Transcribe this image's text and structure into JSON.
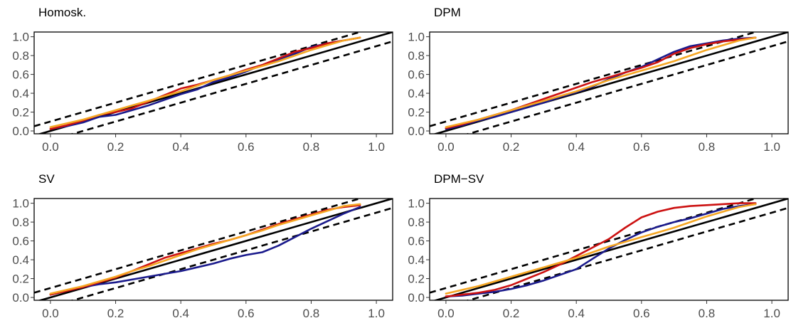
{
  "chart_data": [
    {
      "type": "line",
      "title": "Homosk.",
      "xlim": [
        -0.05,
        1.05
      ],
      "ylim": [
        -0.03,
        1.05
      ],
      "xticks": [
        "0.0",
        "0.2",
        "0.4",
        "0.6",
        "0.8",
        "1.0"
      ],
      "yticks": [
        "0.0",
        "0.2",
        "0.4",
        "0.6",
        "0.8",
        "1.0"
      ],
      "reference": {
        "diagonal": [
          [
            -0.05,
            -0.05
          ],
          [
            1.05,
            1.05
          ]
        ],
        "upper_band": [
          [
            -0.05,
            0.05
          ],
          [
            0.95,
            1.05
          ]
        ],
        "lower_band": [
          [
            0.05,
            -0.05
          ],
          [
            1.05,
            0.95
          ]
        ]
      },
      "series": [
        {
          "color": "#1a1a8c",
          "x": [
            0.0,
            0.05,
            0.1,
            0.15,
            0.2,
            0.25,
            0.3,
            0.35,
            0.4,
            0.45,
            0.5,
            0.55,
            0.6,
            0.65,
            0.7,
            0.75,
            0.8,
            0.85,
            0.9,
            0.95
          ],
          "y": [
            0.02,
            0.05,
            0.09,
            0.15,
            0.17,
            0.22,
            0.27,
            0.33,
            0.39,
            0.44,
            0.52,
            0.57,
            0.63,
            0.7,
            0.76,
            0.82,
            0.89,
            0.93,
            0.96,
            0.99
          ]
        },
        {
          "color": "#cc1111",
          "x": [
            0.0,
            0.05,
            0.1,
            0.15,
            0.2,
            0.25,
            0.3,
            0.35,
            0.4,
            0.45,
            0.5,
            0.55,
            0.6,
            0.65,
            0.7,
            0.75,
            0.8,
            0.85,
            0.9,
            0.95
          ],
          "y": [
            0.02,
            0.06,
            0.11,
            0.17,
            0.2,
            0.24,
            0.31,
            0.38,
            0.45,
            0.49,
            0.54,
            0.59,
            0.65,
            0.7,
            0.77,
            0.84,
            0.88,
            0.93,
            0.96,
            0.99
          ]
        },
        {
          "color": "#f5a623",
          "x": [
            0.0,
            0.05,
            0.1,
            0.15,
            0.2,
            0.25,
            0.3,
            0.35,
            0.4,
            0.45,
            0.5,
            0.55,
            0.6,
            0.65,
            0.7,
            0.75,
            0.8,
            0.85,
            0.9,
            0.95
          ],
          "y": [
            0.04,
            0.08,
            0.12,
            0.17,
            0.22,
            0.27,
            0.32,
            0.37,
            0.42,
            0.48,
            0.54,
            0.59,
            0.64,
            0.69,
            0.74,
            0.8,
            0.86,
            0.91,
            0.96,
            0.99
          ]
        }
      ]
    },
    {
      "type": "line",
      "title": "DPM",
      "xlim": [
        -0.05,
        1.05
      ],
      "ylim": [
        -0.03,
        1.05
      ],
      "xticks": [
        "0.0",
        "0.2",
        "0.4",
        "0.6",
        "0.8",
        "1.0"
      ],
      "yticks": [
        "0.0",
        "0.2",
        "0.4",
        "0.6",
        "0.8",
        "1.0"
      ],
      "reference": {
        "diagonal": [
          [
            -0.05,
            -0.05
          ],
          [
            1.05,
            1.05
          ]
        ],
        "upper_band": [
          [
            -0.05,
            0.05
          ],
          [
            0.95,
            1.05
          ]
        ],
        "lower_band": [
          [
            0.05,
            -0.05
          ],
          [
            1.05,
            0.95
          ]
        ]
      },
      "series": [
        {
          "color": "#1a1a8c",
          "x": [
            0.0,
            0.05,
            0.1,
            0.15,
            0.2,
            0.25,
            0.3,
            0.35,
            0.4,
            0.45,
            0.5,
            0.55,
            0.6,
            0.65,
            0.7,
            0.75,
            0.8,
            0.85,
            0.9,
            0.95
          ],
          "y": [
            0.02,
            0.06,
            0.11,
            0.15,
            0.2,
            0.25,
            0.3,
            0.36,
            0.41,
            0.47,
            0.55,
            0.62,
            0.68,
            0.76,
            0.84,
            0.9,
            0.93,
            0.96,
            0.98,
            0.99
          ]
        },
        {
          "color": "#cc1111",
          "x": [
            0.0,
            0.05,
            0.1,
            0.15,
            0.2,
            0.25,
            0.3,
            0.35,
            0.4,
            0.45,
            0.5,
            0.55,
            0.6,
            0.65,
            0.7,
            0.75,
            0.8,
            0.85,
            0.9,
            0.95
          ],
          "y": [
            0.03,
            0.07,
            0.12,
            0.17,
            0.22,
            0.28,
            0.34,
            0.4,
            0.46,
            0.52,
            0.57,
            0.62,
            0.67,
            0.73,
            0.82,
            0.88,
            0.92,
            0.95,
            0.97,
            0.99
          ]
        },
        {
          "color": "#f5a623",
          "x": [
            0.0,
            0.05,
            0.1,
            0.15,
            0.2,
            0.25,
            0.3,
            0.35,
            0.4,
            0.45,
            0.5,
            0.55,
            0.6,
            0.65,
            0.7,
            0.75,
            0.8,
            0.85,
            0.9,
            0.95
          ],
          "y": [
            0.04,
            0.08,
            0.12,
            0.17,
            0.22,
            0.27,
            0.32,
            0.37,
            0.42,
            0.48,
            0.54,
            0.59,
            0.64,
            0.69,
            0.74,
            0.8,
            0.86,
            0.91,
            0.96,
            0.99
          ]
        }
      ]
    },
    {
      "type": "line",
      "title": "SV",
      "xlim": [
        -0.05,
        1.05
      ],
      "ylim": [
        -0.03,
        1.05
      ],
      "xticks": [
        "0.0",
        "0.2",
        "0.4",
        "0.6",
        "0.8",
        "1.0"
      ],
      "yticks": [
        "0.0",
        "0.2",
        "0.4",
        "0.6",
        "0.8",
        "1.0"
      ],
      "reference": {
        "diagonal": [
          [
            -0.05,
            -0.05
          ],
          [
            1.05,
            1.05
          ]
        ],
        "upper_band": [
          [
            -0.05,
            0.05
          ],
          [
            0.95,
            1.05
          ]
        ],
        "lower_band": [
          [
            0.05,
            -0.05
          ],
          [
            1.05,
            0.95
          ]
        ]
      },
      "series": [
        {
          "color": "#1a1a8c",
          "x": [
            0.0,
            0.05,
            0.1,
            0.15,
            0.2,
            0.25,
            0.3,
            0.35,
            0.4,
            0.45,
            0.5,
            0.55,
            0.6,
            0.65,
            0.7,
            0.75,
            0.8,
            0.85,
            0.9,
            0.95
          ],
          "y": [
            0.03,
            0.07,
            0.11,
            0.14,
            0.16,
            0.19,
            0.22,
            0.25,
            0.28,
            0.32,
            0.36,
            0.41,
            0.45,
            0.48,
            0.55,
            0.64,
            0.73,
            0.81,
            0.89,
            0.96
          ]
        },
        {
          "color": "#cc1111",
          "x": [
            0.0,
            0.05,
            0.1,
            0.15,
            0.2,
            0.25,
            0.3,
            0.35,
            0.4,
            0.45,
            0.5,
            0.55,
            0.6,
            0.65,
            0.7,
            0.75,
            0.8,
            0.85,
            0.9,
            0.95
          ],
          "y": [
            0.03,
            0.07,
            0.11,
            0.16,
            0.21,
            0.28,
            0.35,
            0.42,
            0.47,
            0.52,
            0.57,
            0.61,
            0.66,
            0.72,
            0.78,
            0.83,
            0.88,
            0.93,
            0.96,
            0.98
          ]
        },
        {
          "color": "#f5a623",
          "x": [
            0.0,
            0.05,
            0.1,
            0.15,
            0.2,
            0.25,
            0.3,
            0.35,
            0.4,
            0.45,
            0.5,
            0.55,
            0.6,
            0.65,
            0.7,
            0.75,
            0.8,
            0.85,
            0.9,
            0.95
          ],
          "y": [
            0.04,
            0.08,
            0.12,
            0.17,
            0.22,
            0.28,
            0.33,
            0.39,
            0.45,
            0.51,
            0.56,
            0.61,
            0.66,
            0.71,
            0.77,
            0.82,
            0.87,
            0.92,
            0.97,
            0.99
          ]
        }
      ]
    },
    {
      "type": "line",
      "title": "DPM−SV",
      "xlim": [
        -0.05,
        1.05
      ],
      "ylim": [
        -0.03,
        1.05
      ],
      "xticks": [
        "0.0",
        "0.2",
        "0.4",
        "0.6",
        "0.8",
        "1.0"
      ],
      "yticks": [
        "0.0",
        "0.2",
        "0.4",
        "0.6",
        "0.8",
        "1.0"
      ],
      "reference": {
        "diagonal": [
          [
            -0.05,
            -0.05
          ],
          [
            1.05,
            1.05
          ]
        ],
        "upper_band": [
          [
            -0.05,
            0.05
          ],
          [
            0.95,
            1.05
          ]
        ],
        "lower_band": [
          [
            0.05,
            -0.05
          ],
          [
            1.05,
            0.95
          ]
        ]
      },
      "series": [
        {
          "color": "#1a1a8c",
          "x": [
            0.0,
            0.05,
            0.1,
            0.15,
            0.2,
            0.25,
            0.3,
            0.35,
            0.4,
            0.45,
            0.5,
            0.55,
            0.6,
            0.65,
            0.7,
            0.75,
            0.8,
            0.85,
            0.9,
            0.95
          ],
          "y": [
            0.01,
            0.02,
            0.04,
            0.06,
            0.09,
            0.13,
            0.18,
            0.24,
            0.3,
            0.41,
            0.52,
            0.61,
            0.69,
            0.75,
            0.8,
            0.84,
            0.89,
            0.94,
            0.97,
            0.99
          ]
        },
        {
          "color": "#cc1111",
          "x": [
            0.0,
            0.05,
            0.1,
            0.15,
            0.2,
            0.25,
            0.3,
            0.35,
            0.4,
            0.45,
            0.5,
            0.55,
            0.6,
            0.65,
            0.7,
            0.75,
            0.8,
            0.85,
            0.9,
            0.95
          ],
          "y": [
            0.01,
            0.03,
            0.05,
            0.08,
            0.13,
            0.2,
            0.27,
            0.35,
            0.44,
            0.53,
            0.62,
            0.74,
            0.85,
            0.91,
            0.95,
            0.97,
            0.98,
            0.99,
            1.0,
            1.0
          ]
        },
        {
          "color": "#f5a623",
          "x": [
            0.0,
            0.05,
            0.1,
            0.15,
            0.2,
            0.25,
            0.3,
            0.35,
            0.4,
            0.45,
            0.5,
            0.55,
            0.6,
            0.65,
            0.7,
            0.75,
            0.8,
            0.85,
            0.9,
            0.95
          ],
          "y": [
            0.04,
            0.08,
            0.12,
            0.17,
            0.22,
            0.27,
            0.32,
            0.37,
            0.42,
            0.48,
            0.54,
            0.59,
            0.64,
            0.69,
            0.74,
            0.8,
            0.86,
            0.91,
            0.96,
            0.99
          ]
        }
      ]
    }
  ]
}
